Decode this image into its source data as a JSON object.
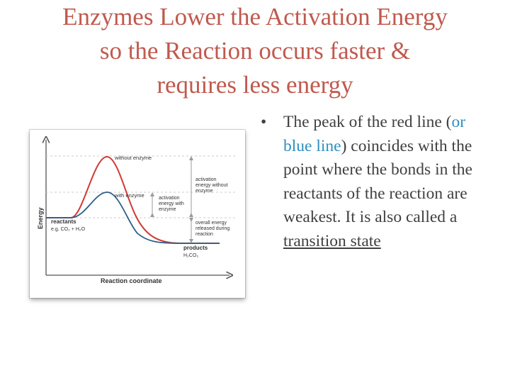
{
  "title": {
    "line1": "Enzymes Lower the Activation Energy",
    "line2": "so the Reaction occurs faster &",
    "line3": "requires less energy"
  },
  "bullet": {
    "marker": "•",
    "part1": "The peak of the red line (",
    "part2": "or blue line",
    "part3": ") coincides with the point where the bonds in the reactants of the reaction are weakest. It is also called a ",
    "link_text": "transition state"
  },
  "diagram": {
    "y_axis_label": "Energy",
    "x_axis_label": "Reaction coordinate",
    "curve_red_label": "without enzyme",
    "curve_blue_label": "with enzyme",
    "reactants_label": "reactants",
    "reactants_formula": "e.g. CO₂ + H₂O",
    "products_label": "products",
    "products_formula": "H₂CO₃",
    "activation_without_line1": "activation",
    "activation_without_line2": "energy without",
    "activation_without_line3": "enzyme",
    "activation_with_line1": "activation",
    "activation_with_line2": "energy with",
    "activation_with_line3": "enzyme",
    "overall_line1": "overall energy",
    "overall_line2": "released during",
    "overall_line3": "reaction",
    "colors": {
      "red_curve": "#d03a36",
      "blue_curve": "#2c5f8a",
      "arrow": "#9a9a9a",
      "axis": "#555555"
    }
  }
}
